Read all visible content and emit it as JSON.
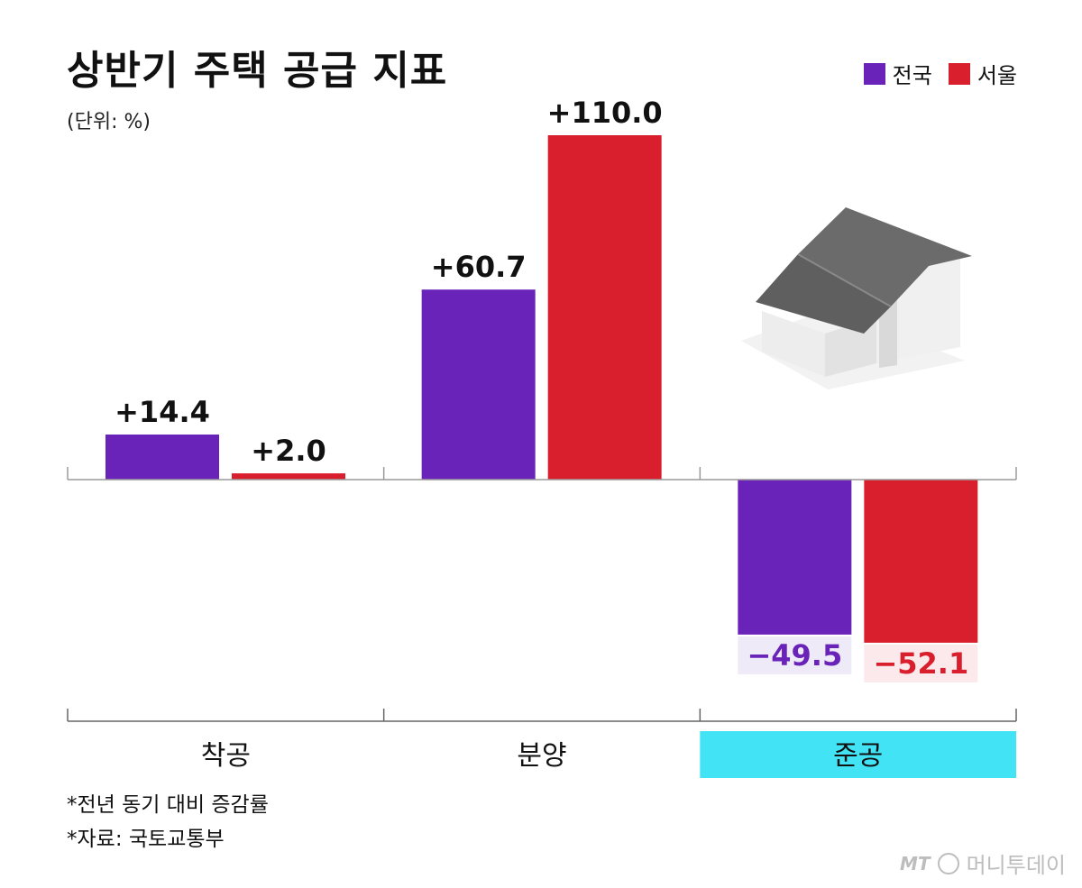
{
  "chart_data": {
    "type": "bar",
    "title": "상반기 주택 공급 지표",
    "unit_label": "(단위: %)",
    "categories": [
      "착공",
      "분양",
      "준공"
    ],
    "highlight_category": "준공",
    "series": [
      {
        "name": "전국",
        "color": "#6a23b8",
        "values": [
          14.4,
          60.7,
          -49.5
        ]
      },
      {
        "name": "서울",
        "color": "#d91f2e",
        "values": [
          2.0,
          110.0,
          -52.1
        ]
      }
    ],
    "data_labels": [
      [
        "+14.4",
        "+60.7",
        "−49.5"
      ],
      [
        "+2.0",
        "+110.0",
        "−52.1"
      ]
    ],
    "ylim": [
      -60,
      130
    ],
    "grid": false,
    "legend_position": "top-right"
  },
  "colors": {
    "highlight_band": "#42e3f5",
    "neg_label_bg_series0": "#efeaf8",
    "neg_label_bg_series1": "#fbe9eb",
    "house_roof": "#6b6b6b",
    "house_wall": "#e9e9e9"
  },
  "notes": [
    "*전년 동기 대비 증감률",
    "*자료: 국토교통부"
  ],
  "watermark": {
    "logo": "MT",
    "text": "머니투데이"
  },
  "decoration": "house-icon"
}
